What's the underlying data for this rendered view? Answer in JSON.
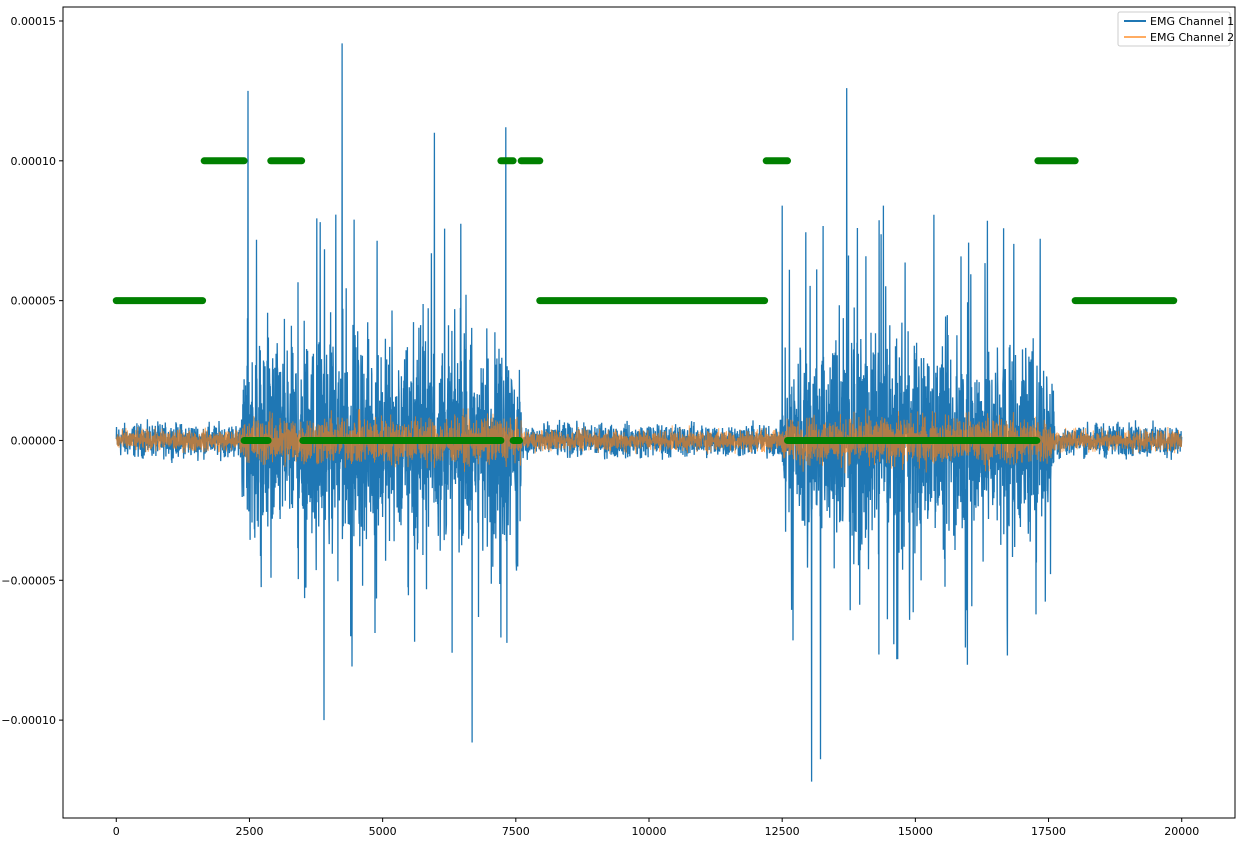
{
  "chart_data": {
    "type": "line",
    "xlim": [
      -1000,
      21000
    ],
    "ylim": [
      -0.000135,
      0.000155
    ],
    "x_ticks": [
      {
        "value": 0,
        "label": "0"
      },
      {
        "value": 2500,
        "label": "2500"
      },
      {
        "value": 5000,
        "label": "5000"
      },
      {
        "value": 7500,
        "label": "7500"
      },
      {
        "value": 10000,
        "label": "10000"
      },
      {
        "value": 12500,
        "label": "12500"
      },
      {
        "value": 15000,
        "label": "15000"
      },
      {
        "value": 17500,
        "label": "17500"
      },
      {
        "value": 20000,
        "label": "20000"
      }
    ],
    "y_ticks": [
      {
        "value": -0.0001,
        "label": "−0.00010"
      },
      {
        "value": -5e-05,
        "label": "−0.00005"
      },
      {
        "value": 0,
        "label": "0.00000"
      },
      {
        "value": 5e-05,
        "label": "0.00005"
      },
      {
        "value": 0.0001,
        "label": "0.00010"
      },
      {
        "value": 0.00015,
        "label": "0.00015"
      }
    ],
    "grid": false,
    "legend_position": "top-right",
    "x_range": [
      0,
      20000
    ],
    "series": [
      {
        "name": "EMG Channel 1",
        "color": "#1f77b4",
        "baseline_amplitude": 5e-06,
        "burst_amplitude": 3e-05,
        "bursts": [
          [
            2350,
            7600
          ],
          [
            12500,
            17600
          ]
        ],
        "peaks": [
          {
            "x": 2470,
            "y": 0.000125
          },
          {
            "x": 4240,
            "y": 0.000142
          },
          {
            "x": 5970,
            "y": 0.00011
          },
          {
            "x": 7310,
            "y": 0.000112
          },
          {
            "x": 13710,
            "y": 0.000126
          },
          {
            "x": 12500,
            "y": 8.4e-05
          },
          {
            "x": 14400,
            "y": 8.4e-05
          },
          {
            "x": 3900,
            "y": -0.0001
          },
          {
            "x": 6680,
            "y": -0.000108
          },
          {
            "x": 13050,
            "y": -0.000122
          },
          {
            "x": 13220,
            "y": -0.000114
          },
          {
            "x": 5600,
            "y": -7.2e-05
          },
          {
            "x": 4400,
            "y": -7e-05
          }
        ]
      },
      {
        "name": "EMG Channel 2",
        "color": "#ff7f0e",
        "alpha": 0.5,
        "baseline_amplitude": 3.5e-06,
        "burst_amplitude": 8e-06,
        "bursts": [
          [
            2350,
            7600
          ],
          [
            12500,
            17600
          ]
        ]
      }
    ],
    "markers": {
      "color": "#008000",
      "segments": [
        {
          "y": 5e-05,
          "x_start": 0,
          "x_end": 1620
        },
        {
          "y": 0.0001,
          "x_start": 1650,
          "x_end": 2400
        },
        {
          "y": 0,
          "x_start": 2400,
          "x_end": 2850
        },
        {
          "y": 0.0001,
          "x_start": 2900,
          "x_end": 3480
        },
        {
          "y": 0,
          "x_start": 3500,
          "x_end": 7220
        },
        {
          "y": 0.0001,
          "x_start": 7220,
          "x_end": 7450
        },
        {
          "y": 0,
          "x_start": 7450,
          "x_end": 7570
        },
        {
          "y": 0.0001,
          "x_start": 7600,
          "x_end": 7950
        },
        {
          "y": 5e-05,
          "x_start": 7950,
          "x_end": 12170
        },
        {
          "y": 0.0001,
          "x_start": 12200,
          "x_end": 12600
        },
        {
          "y": 0,
          "x_start": 12600,
          "x_end": 17280
        },
        {
          "y": 0.0001,
          "x_start": 17300,
          "x_end": 18000
        },
        {
          "y": 5e-05,
          "x_start": 18000,
          "x_end": 19850
        }
      ]
    }
  }
}
